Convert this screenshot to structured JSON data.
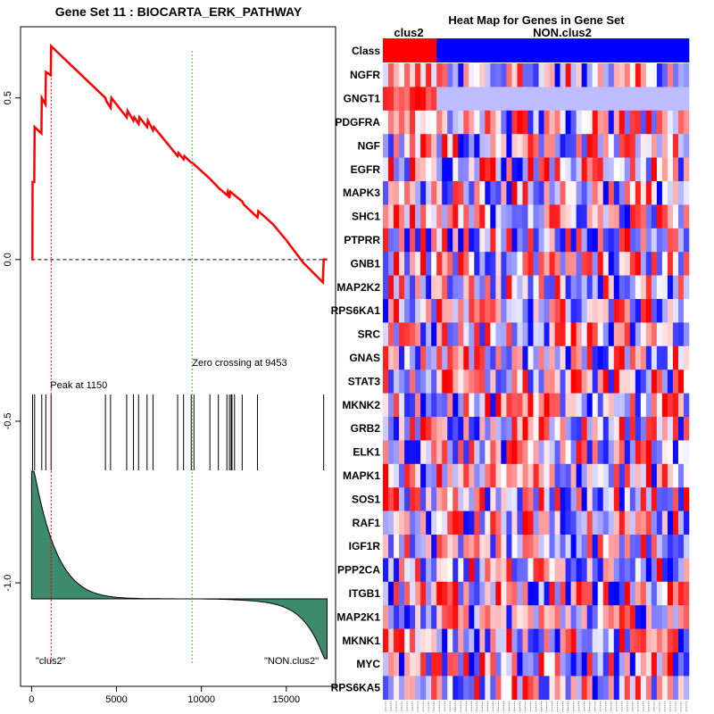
{
  "colors": {
    "es_line": "#ff0000",
    "peak_line": "#cc0000",
    "zero_line": "#22cc22",
    "rank_fill": "#3d8a6e",
    "class_clus2": "#ff0000",
    "class_non": "#0000ff"
  },
  "chart_data": [
    {
      "type": "line",
      "title": "Gene Set  11 : BIOCARTA_ERK_PATHWAY",
      "x_ticks": [
        0,
        5000,
        10000,
        15000
      ],
      "x_tick_labels": [
        "0",
        "5000",
        "10000",
        "15000"
      ],
      "y_ticks": [
        0.5,
        0.0,
        -0.5,
        -1.0
      ],
      "y_tick_labels": [
        "0.5",
        "0.0",
        "-0.5",
        "-1.0"
      ],
      "xlim": [
        -650,
        17900
      ],
      "ylim": [
        -1.32,
        0.72
      ],
      "n_genes": 17400,
      "peak": {
        "x": 1150,
        "label": "Peak at 1150"
      },
      "zero_crossing": {
        "x": 9453,
        "label": "Zero crossing at 9453"
      },
      "running_es": [
        [
          0,
          0.0
        ],
        [
          50,
          0.0
        ],
        [
          60,
          0.24
        ],
        [
          160,
          0.24
        ],
        [
          180,
          0.41
        ],
        [
          580,
          0.39
        ],
        [
          600,
          0.5
        ],
        [
          820,
          0.48
        ],
        [
          840,
          0.58
        ],
        [
          1130,
          0.57
        ],
        [
          1150,
          0.66
        ],
        [
          4350,
          0.5
        ],
        [
          4400,
          0.49
        ],
        [
          4650,
          0.47
        ],
        [
          4700,
          0.5
        ],
        [
          5600,
          0.44
        ],
        [
          5650,
          0.46
        ],
        [
          6000,
          0.43
        ],
        [
          6050,
          0.44
        ],
        [
          6300,
          0.42
        ],
        [
          6350,
          0.44
        ],
        [
          6800,
          0.41
        ],
        [
          6850,
          0.43
        ],
        [
          7150,
          0.4
        ],
        [
          7200,
          0.41
        ],
        [
          8600,
          0.32
        ],
        [
          8650,
          0.33
        ],
        [
          8950,
          0.31
        ],
        [
          9000,
          0.32
        ],
        [
          9400,
          0.3
        ],
        [
          9450,
          0.3
        ],
        [
          10500,
          0.25
        ],
        [
          11050,
          0.22
        ],
        [
          11500,
          0.2
        ],
        [
          11550,
          0.21
        ],
        [
          11650,
          0.19
        ],
        [
          11700,
          0.21
        ],
        [
          12400,
          0.18
        ],
        [
          12500,
          0.17
        ],
        [
          13300,
          0.13
        ],
        [
          13350,
          0.15
        ],
        [
          14200,
          0.11
        ],
        [
          15000,
          0.06
        ],
        [
          16000,
          -0.01
        ],
        [
          17150,
          -0.07
        ],
        [
          17200,
          0.0
        ],
        [
          17400,
          0.0
        ]
      ],
      "hit_positions": [
        60,
        180,
        600,
        840,
        1150,
        4350,
        4650,
        5600,
        6000,
        6300,
        6800,
        7150,
        8600,
        8950,
        9400,
        9560,
        10500,
        11000,
        11500,
        11650,
        11750,
        11800,
        11950,
        12400,
        13300,
        17200
      ],
      "class_labels": {
        "left": "\"clus2\"",
        "right": "\"NON.clus2\""
      }
    },
    {
      "type": "heatmap",
      "title": "Heat Map for Genes in Gene Set",
      "class_row_label": "Class",
      "class_groups": [
        {
          "name": "clus2",
          "count": 10
        },
        {
          "name": "NON.clus2",
          "count": 47
        }
      ],
      "genes": [
        "NGFR",
        "GNGT1",
        "PDGFRA",
        "NGF",
        "EGFR",
        "MAPK3",
        "SHC1",
        "PTPRR",
        "GNB1",
        "MAP2K2",
        "RPS6KA1",
        "SRC",
        "GNAS",
        "STAT3",
        "MKNK2",
        "GRB2",
        "ELK1",
        "MAPK1",
        "SOS1",
        "RAF1",
        "IGF1R",
        "PPP2CA",
        "ITGB1",
        "MAP2K1",
        "MKNK1",
        "MYC",
        "RPS6KA5"
      ],
      "n_samples": 57
    }
  ]
}
